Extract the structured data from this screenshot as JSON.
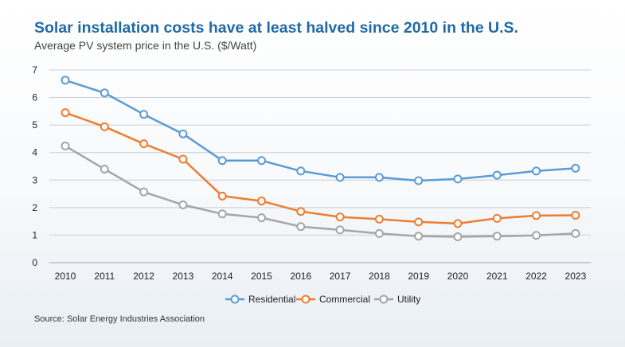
{
  "chart_data": {
    "type": "line",
    "title": "Solar installation costs have at least halved since 2010 in the U.S.",
    "subtitle": "Average PV system price in the U.S. ($/Watt)",
    "source": "Source: Solar Energy Industries Association",
    "categories": [
      "2010",
      "2011",
      "2012",
      "2013",
      "2014",
      "2015",
      "2016",
      "2017",
      "2018",
      "2019",
      "2020",
      "2021",
      "2022",
      "2023"
    ],
    "ylim": [
      0,
      7
    ],
    "yticks": [
      0,
      1,
      2,
      3,
      4,
      5,
      6,
      7
    ],
    "grid": true,
    "legend_position": "bottom",
    "series": [
      {
        "name": "Residential",
        "color": "#5b9bd5",
        "values": [
          6.63,
          6.17,
          5.39,
          4.68,
          3.71,
          3.71,
          3.33,
          3.1,
          3.1,
          2.98,
          3.04,
          3.18,
          3.33,
          3.43
        ]
      },
      {
        "name": "Commercial",
        "color": "#ed7d31",
        "values": [
          5.45,
          4.94,
          4.32,
          3.76,
          2.42,
          2.24,
          1.86,
          1.66,
          1.58,
          1.48,
          1.42,
          1.61,
          1.71,
          1.72
        ]
      },
      {
        "name": "Utility",
        "color": "#a5a5a5",
        "values": [
          4.24,
          3.4,
          2.57,
          2.1,
          1.77,
          1.63,
          1.31,
          1.19,
          1.06,
          0.96,
          0.94,
          0.96,
          0.99,
          1.06
        ]
      }
    ]
  }
}
